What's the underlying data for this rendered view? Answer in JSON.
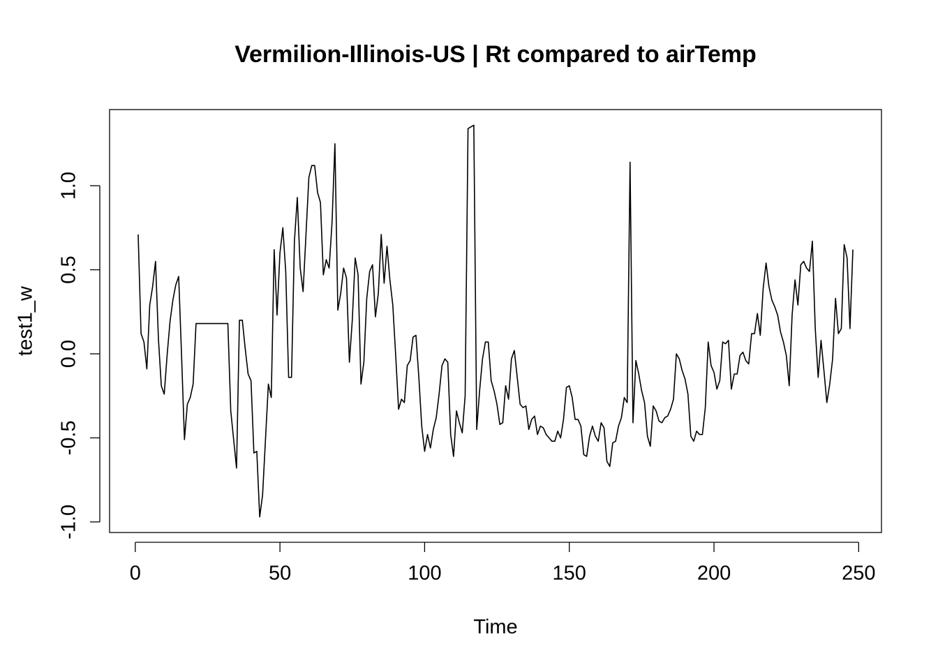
{
  "chart_data": {
    "type": "line",
    "title": "Vermilion-Illinois-US | Rt compared to airTemp",
    "xlabel": "Time",
    "ylabel": "test1_w",
    "color": "#000000",
    "xlim": [
      -8.88,
      257.88
    ],
    "ylim": [
      -1.063,
      1.453
    ],
    "xticks": [
      0,
      50,
      100,
      150,
      200,
      250
    ],
    "yticks": [
      {
        "value": -1,
        "label": "-1.0"
      },
      -0.5,
      {
        "value": 0,
        "label": "0.0"
      },
      0.5,
      {
        "value": 1,
        "label": "1.0"
      }
    ],
    "x": [
      1,
      2,
      3,
      4,
      5,
      6,
      7,
      8,
      9,
      10,
      11,
      12,
      13,
      14,
      15,
      16,
      17,
      18,
      19,
      20,
      21,
      22,
      23,
      24,
      25,
      26,
      27,
      28,
      29,
      30,
      31,
      32,
      33,
      34,
      35,
      36,
      37,
      38,
      39,
      40,
      41,
      42,
      43,
      44,
      45,
      46,
      47,
      48,
      49,
      50,
      51,
      52,
      53,
      54,
      55,
      56,
      57,
      58,
      59,
      60,
      61,
      62,
      63,
      64,
      65,
      66,
      67,
      68,
      69,
      70,
      71,
      72,
      73,
      74,
      75,
      76,
      77,
      78,
      79,
      80,
      81,
      82,
      83,
      84,
      85,
      86,
      87,
      88,
      89,
      90,
      91,
      92,
      93,
      94,
      95,
      96,
      97,
      98,
      99,
      100,
      101,
      102,
      103,
      104,
      105,
      106,
      107,
      108,
      109,
      110,
      111,
      112,
      113,
      114,
      115,
      116,
      117,
      118,
      119,
      120,
      121,
      122,
      123,
      124,
      125,
      126,
      127,
      128,
      129,
      130,
      131,
      132,
      133,
      134,
      135,
      136,
      137,
      138,
      139,
      140,
      141,
      142,
      143,
      144,
      145,
      146,
      147,
      148,
      149,
      150,
      151,
      152,
      153,
      154,
      155,
      156,
      157,
      158,
      159,
      160,
      161,
      162,
      163,
      164,
      165,
      166,
      167,
      168,
      169,
      170,
      171,
      172,
      173,
      174,
      175,
      176,
      177,
      178,
      179,
      180,
      181,
      182,
      183,
      184,
      185,
      186,
      187,
      188,
      189,
      190,
      191,
      192,
      193,
      194,
      195,
      196,
      197,
      198,
      199,
      200,
      201,
      202,
      203,
      204,
      205,
      206,
      207,
      208,
      209,
      210,
      211,
      212,
      213,
      214,
      215,
      216,
      217,
      218,
      219,
      220,
      221,
      222,
      223,
      224,
      225,
      226,
      227,
      228,
      229,
      230,
      231,
      232,
      233,
      234,
      235,
      236,
      237,
      238,
      239,
      240,
      241,
      242,
      243,
      244,
      245,
      246,
      247,
      248
    ],
    "values": [
      0.71,
      0.12,
      0.07,
      -0.09,
      0.29,
      0.4,
      0.55,
      0.09,
      -0.19,
      -0.24,
      -0.01,
      0.19,
      0.32,
      0.41,
      0.46,
      -0.01,
      -0.51,
      -0.3,
      -0.26,
      -0.18,
      0.18,
      0.18,
      0.18,
      0.18,
      0.18,
      0.18,
      0.18,
      0.18,
      0.18,
      0.18,
      0.18,
      0.18,
      -0.34,
      -0.51,
      -0.68,
      0.2,
      0.2,
      0.03,
      -0.12,
      -0.16,
      -0.59,
      -0.58,
      -0.97,
      -0.84,
      -0.51,
      -0.18,
      -0.26,
      0.62,
      0.23,
      0.6,
      0.75,
      0.49,
      -0.14,
      -0.14,
      0.67,
      0.93,
      0.51,
      0.37,
      0.71,
      1.05,
      1.12,
      1.12,
      0.96,
      0.9,
      0.47,
      0.56,
      0.51,
      0.78,
      1.25,
      0.26,
      0.36,
      0.51,
      0.45,
      -0.05,
      0.2,
      0.57,
      0.47,
      -0.18,
      -0.05,
      0.33,
      0.49,
      0.53,
      0.22,
      0.36,
      0.71,
      0.42,
      0.64,
      0.44,
      0.29,
      -0.01,
      -0.33,
      -0.27,
      -0.29,
      -0.07,
      -0.04,
      0.1,
      0.11,
      -0.14,
      -0.43,
      -0.58,
      -0.48,
      -0.56,
      -0.45,
      -0.38,
      -0.24,
      -0.07,
      -0.03,
      -0.05,
      -0.48,
      -0.61,
      -0.34,
      -0.41,
      -0.47,
      -0.25,
      1.34,
      1.35,
      1.36,
      -0.45,
      -0.22,
      -0.03,
      0.07,
      0.07,
      -0.16,
      -0.22,
      -0.3,
      -0.42,
      -0.41,
      -0.19,
      -0.27,
      -0.03,
      0.02,
      -0.14,
      -0.3,
      -0.32,
      -0.31,
      -0.45,
      -0.39,
      -0.37,
      -0.48,
      -0.43,
      -0.44,
      -0.48,
      -0.5,
      -0.52,
      -0.52,
      -0.46,
      -0.5,
      -0.39,
      -0.2,
      -0.19,
      -0.26,
      -0.39,
      -0.39,
      -0.43,
      -0.6,
      -0.61,
      -0.49,
      -0.43,
      -0.49,
      -0.52,
      -0.41,
      -0.44,
      -0.64,
      -0.67,
      -0.53,
      -0.52,
      -0.43,
      -0.38,
      -0.26,
      -0.29,
      1.14,
      -0.41,
      -0.04,
      -0.12,
      -0.22,
      -0.29,
      -0.49,
      -0.55,
      -0.31,
      -0.34,
      -0.4,
      -0.41,
      -0.38,
      -0.37,
      -0.33,
      -0.27,
      0.0,
      -0.03,
      -0.1,
      -0.15,
      -0.24,
      -0.49,
      -0.52,
      -0.46,
      -0.48,
      -0.48,
      -0.32,
      0.07,
      -0.07,
      -0.11,
      -0.21,
      -0.16,
      0.07,
      0.06,
      0.08,
      -0.21,
      -0.12,
      -0.12,
      -0.01,
      0.01,
      -0.04,
      -0.06,
      0.12,
      0.12,
      0.24,
      0.11,
      0.39,
      0.54,
      0.4,
      0.32,
      0.28,
      0.23,
      0.13,
      0.07,
      -0.01,
      -0.19,
      0.23,
      0.44,
      0.29,
      0.53,
      0.55,
      0.51,
      0.49,
      0.67,
      0.15,
      -0.14,
      0.08,
      -0.1,
      -0.29,
      -0.18,
      -0.03,
      0.33,
      0.12,
      0.15,
      0.65,
      0.57,
      0.15,
      0.62
    ]
  }
}
